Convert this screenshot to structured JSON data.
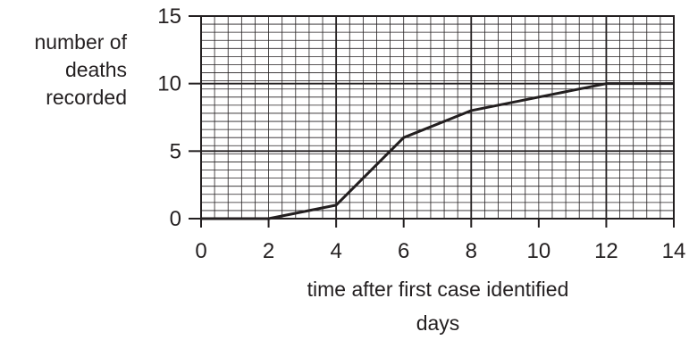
{
  "chart_data": {
    "type": "line",
    "xlabel": "time after first case identified",
    "xunit": "days",
    "ylabel_lines": [
      "number of",
      "deaths",
      "recorded"
    ],
    "xlim": [
      0,
      14
    ],
    "ylim": [
      0,
      15
    ],
    "xticks": [
      0,
      2,
      4,
      6,
      8,
      10,
      12,
      14
    ],
    "yticks": [
      0,
      5,
      10,
      15
    ],
    "grid": true,
    "series": [
      {
        "x": [
          0,
          2,
          4,
          6,
          8,
          10,
          12,
          14
        ],
        "y": [
          0,
          0,
          1,
          6,
          8,
          9,
          10,
          10
        ]
      }
    ],
    "colors": {
      "ink": "#231f20"
    }
  }
}
